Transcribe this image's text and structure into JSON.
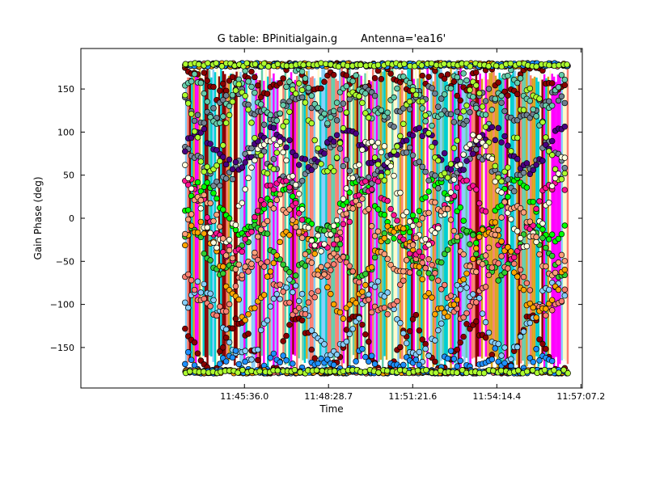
{
  "chart_data": {
    "type": "scatter",
    "title": "G table: BPinitialgain.g       Antenna='ea16'",
    "xlabel": "Time",
    "ylabel": "Gain Phase (deg)",
    "x_ticks": [
      "11:45:36.0",
      "11:48:28.7",
      "11:51:21.6",
      "11:54:14.4",
      "11:57:07.2"
    ],
    "x_tick_seconds": [
      42336.0,
      42508.7,
      42681.6,
      42854.4,
      43027.2
    ],
    "xlim_seconds": [
      42000,
      43030
    ],
    "y_ticks": [
      150,
      100,
      50,
      0,
      -50,
      -100,
      -150
    ],
    "ylim": [
      -197,
      197
    ],
    "x_data_range_seconds": [
      42214,
      43000
    ],
    "grid": false,
    "legend": "none",
    "series": [
      {
        "color": "#00ff00",
        "center": 10,
        "amp": 30,
        "period": 160,
        "phase": 0.0
      },
      {
        "color": "#32cd32",
        "center": -40,
        "amp": 25,
        "period": 140,
        "phase": 1.2
      },
      {
        "color": "#8b0000",
        "center": -150,
        "amp": 30,
        "period": 120,
        "phase": 2.1
      },
      {
        "color": "#8b0000",
        "center": 160,
        "amp": 15,
        "period": 100,
        "phase": 0.6
      },
      {
        "color": "#87cefa",
        "center": -120,
        "amp": 40,
        "period": 180,
        "phase": 0.4
      },
      {
        "color": "#778899",
        "center": 60,
        "amp": 20,
        "period": 150,
        "phase": 1.7
      },
      {
        "color": "#708090",
        "center": 130,
        "amp": 15,
        "period": 130,
        "phase": 2.8
      },
      {
        "color": "#66cdaa",
        "center": 140,
        "amp": 25,
        "period": 110,
        "phase": 0.9
      },
      {
        "color": "#fa8072",
        "center": -80,
        "amp": 30,
        "period": 170,
        "phase": 2.4
      },
      {
        "color": "#ff1493",
        "center": 0,
        "amp": 40,
        "period": 190,
        "phase": 1.5
      },
      {
        "color": "#4b0082",
        "center": 80,
        "amp": 20,
        "period": 150,
        "phase": 0.3
      },
      {
        "color": "#adff2f",
        "center": 100,
        "amp": 50,
        "period": 120,
        "phase": 2.0
      },
      {
        "color": "#ffa500",
        "center": -60,
        "amp": 50,
        "period": 200,
        "phase": 0.7
      },
      {
        "color": "#1e90ff",
        "center": -170,
        "amp": 10,
        "period": 90,
        "phase": 1.1
      },
      {
        "color": "#ffffe0",
        "center": 30,
        "amp": 60,
        "period": 210,
        "phase": 2.6
      },
      {
        "color": "#ffa07a",
        "center": -20,
        "amp": 40,
        "period": 160,
        "phase": 0.2
      }
    ],
    "vertical_bars": [
      {
        "color": "#87cefa"
      },
      {
        "color": "#fa8072"
      },
      {
        "color": "#8b0000"
      },
      {
        "color": "#66cdaa"
      },
      {
        "color": "#00ced1"
      },
      {
        "color": "#ff00ff"
      },
      {
        "color": "#daa520"
      },
      {
        "color": "#fffacd"
      }
    ]
  }
}
